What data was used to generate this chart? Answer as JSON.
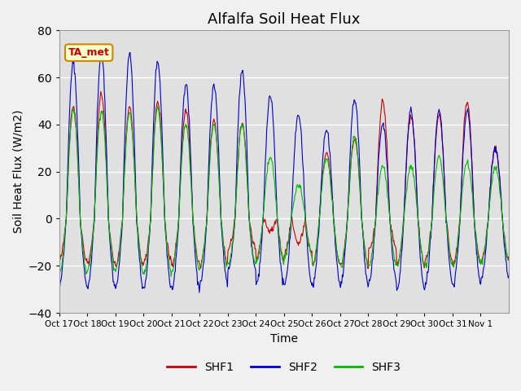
{
  "title": "Alfalfa Soil Heat Flux",
  "ylabel": "Soil Heat Flux (W/m2)",
  "xlabel": "Time",
  "ylim": [
    -40,
    80
  ],
  "annotation": "TA_met",
  "legend": [
    "SHF1",
    "SHF2",
    "SHF3"
  ],
  "colors": {
    "SHF1": "#cc0000",
    "SHF2": "#0000cc",
    "SHF3": "#00bb00"
  },
  "background_color": "#e0e0e0",
  "tick_labels": [
    "Oct 17",
    "Oct 18",
    "Oct 19",
    "Oct 20",
    "Oct 21",
    "Oct 22",
    "Oct 23",
    "Oct 24",
    "Oct 25",
    "Oct 26",
    "Oct 27",
    "Oct 28",
    "Oct 29",
    "Oct 30",
    "Oct 31",
    "Nov 1"
  ],
  "grid_color": "white",
  "title_fontsize": 13,
  "label_fontsize": 10,
  "shf1_peaks": [
    48,
    53,
    47,
    50,
    46,
    42,
    40,
    -5,
    -10,
    28,
    34,
    50,
    44,
    44,
    50,
    30
  ],
  "shf2_peaks": [
    66,
    70,
    70,
    67,
    57,
    57,
    63,
    52,
    44,
    38,
    51,
    40,
    46,
    46,
    46,
    30
  ],
  "shf3_peaks": [
    46,
    46,
    45,
    47,
    40,
    40,
    40,
    26,
    14,
    25,
    35,
    22,
    22,
    26,
    24,
    22
  ],
  "shf1_troughs": [
    -18,
    -19,
    -20,
    -19,
    -20,
    -20,
    -13,
    -18,
    -15,
    -20,
    -20,
    -13,
    -20,
    -18,
    -19,
    -18
  ],
  "shf2_troughs": [
    -28,
    -29,
    -29,
    -29,
    -30,
    -28,
    -22,
    -28,
    -28,
    -28,
    -28,
    -27,
    -30,
    -28,
    -28,
    -25
  ],
  "shf3_troughs": [
    -23,
    -22,
    -22,
    -23,
    -22,
    -21,
    -20,
    -18,
    -16,
    -20,
    -20,
    -20,
    -20,
    -20,
    -20,
    -18
  ]
}
